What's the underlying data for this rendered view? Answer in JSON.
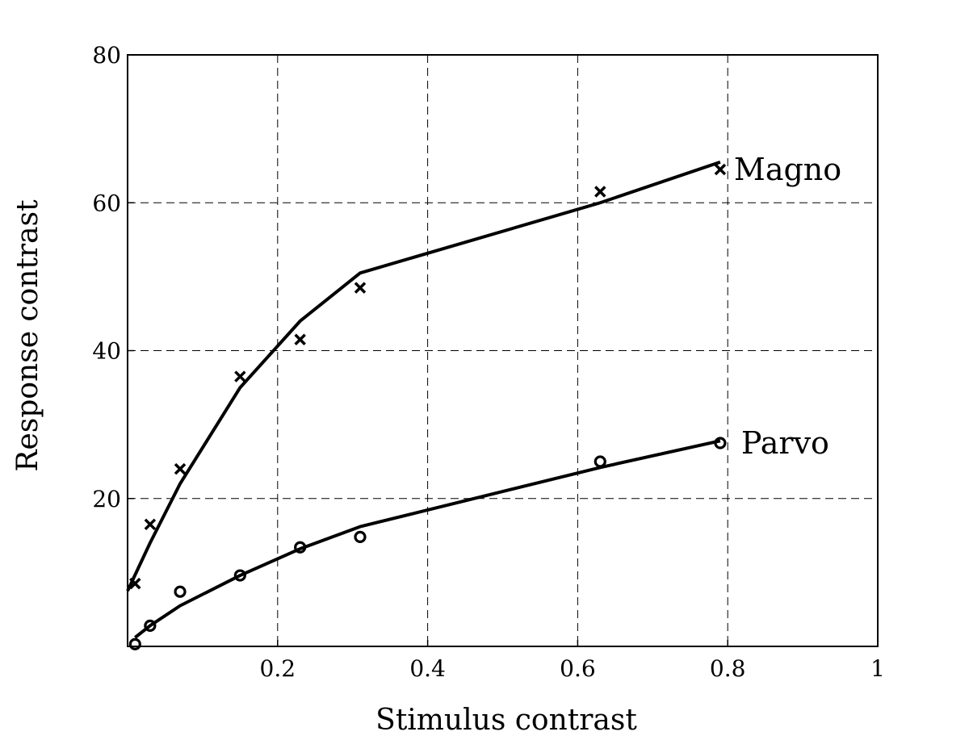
{
  "chart_data": {
    "type": "line",
    "xlabel": "Stimulus contrast",
    "ylabel": "Response contrast",
    "xlim": [
      0,
      1
    ],
    "ylim": [
      0,
      80
    ],
    "xticks": [
      0.2,
      0.4,
      0.6,
      0.8,
      1
    ],
    "xtick_labels": [
      "0.2",
      "0.4",
      "0.6",
      "0.8",
      "1"
    ],
    "yticks": [
      20,
      40,
      60,
      80
    ],
    "ytick_labels": [
      "20",
      "40",
      "60",
      "80"
    ],
    "grid": true,
    "series": [
      {
        "name": "Magno",
        "marker": "x",
        "points_x": [
          0.01,
          0.03,
          0.07,
          0.15,
          0.23,
          0.31,
          0.63,
          0.79
        ],
        "points_y": [
          8.5,
          16.5,
          24,
          36.5,
          41.5,
          48.5,
          61.5,
          64.5
        ],
        "fit_x": [
          0,
          0.03,
          0.07,
          0.15,
          0.23,
          0.31,
          0.63,
          0.79
        ],
        "fit_y": [
          7.5,
          14,
          22,
          35,
          44,
          50.5,
          60,
          65.5
        ]
      },
      {
        "name": "Parvo",
        "marker": "o",
        "points_x": [
          0.01,
          0.03,
          0.07,
          0.15,
          0.23,
          0.31,
          0.63,
          0.79
        ],
        "points_y": [
          0.3,
          2.8,
          7.4,
          9.6,
          13.4,
          14.8,
          25,
          27.5
        ],
        "fit_x": [
          0.01,
          0.03,
          0.07,
          0.15,
          0.23,
          0.31,
          0.63,
          0.79
        ],
        "fit_y": [
          1.2,
          2.8,
          5.5,
          9.6,
          13.2,
          16.2,
          24.2,
          27.8
        ]
      }
    ]
  }
}
